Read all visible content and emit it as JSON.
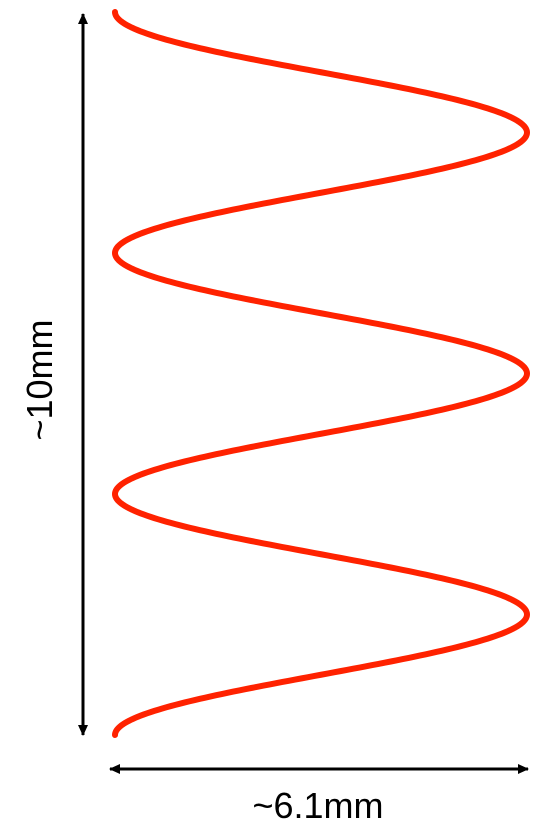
{
  "diagram": {
    "height_label": "~10mm",
    "width_label": "~6.1mm",
    "wave_color": "#ff2200",
    "arrow_color": "#000000",
    "wave_periods": 3
  }
}
